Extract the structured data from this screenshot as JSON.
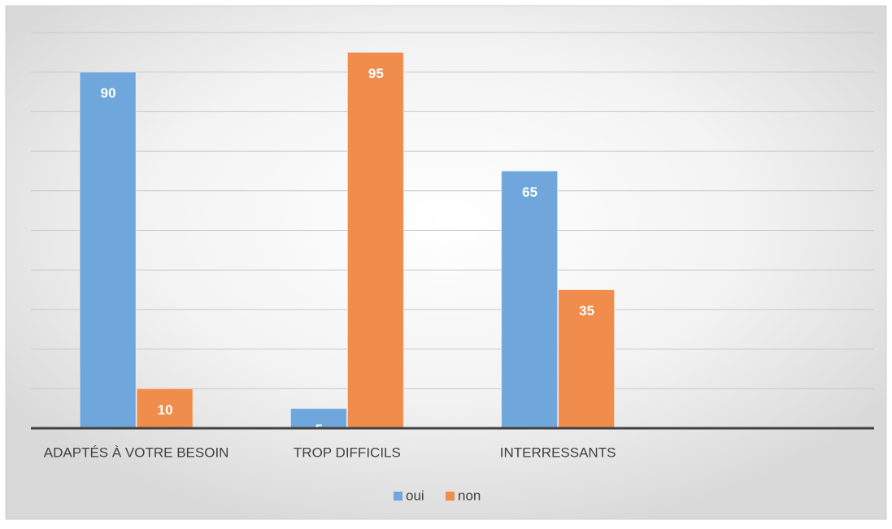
{
  "chart_data": {
    "type": "bar",
    "categories": [
      "ADAPTÉS À VOTRE BESOIN",
      "TROP DIFFICILS",
      "INTERRESSANTS",
      null
    ],
    "series": [
      {
        "name": "oui",
        "color": "#6fa7dc",
        "values": [
          90,
          5,
          65,
          null
        ]
      },
      {
        "name": "non",
        "color": "#f08c4c",
        "values": [
          10,
          95,
          35,
          null
        ]
      }
    ],
    "ylim": [
      0,
      100
    ],
    "yticks": [
      0,
      10,
      20,
      30,
      40,
      50,
      60,
      70,
      80,
      90,
      100
    ],
    "grid": true,
    "legend": "bottom"
  }
}
